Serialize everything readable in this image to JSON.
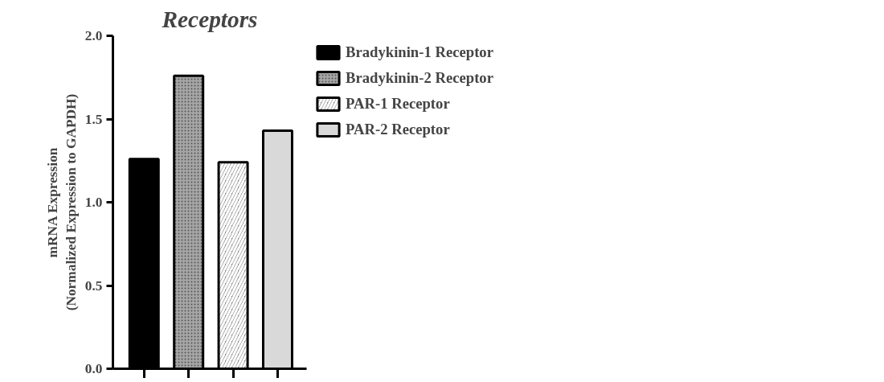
{
  "chart_data": {
    "type": "bar",
    "title": "Receptors",
    "ylabel": "mRNA Expression\n(Normalized Expression to GAPDH)",
    "categories": [
      null,
      null,
      null,
      null
    ],
    "series": [
      {
        "name": "Bradykinin-1 Receptor",
        "color": "#000000",
        "values": [
          1.26,
          null,
          null,
          null
        ]
      },
      {
        "name": "Bradykinin-2 Receptor",
        "color": "#a6a6a6",
        "values": [
          null,
          1.76,
          null,
          null
        ]
      },
      {
        "name": "PAR-1 Receptor",
        "color": "#808080",
        "values": [
          null,
          null,
          1.24,
          null
        ]
      },
      {
        "name": "PAR-2 Receptor",
        "color": "#d9d9d9",
        "values": [
          null,
          null,
          null,
          1.43
        ]
      }
    ],
    "ylim": [
      0,
      2.0
    ],
    "yticks": [
      {
        "value": 0,
        "label": "0.0"
      },
      0.5,
      {
        "value": 1,
        "label": "1.0"
      },
      1.5,
      {
        "value": 2,
        "label": "2.0"
      }
    ],
    "grid": false,
    "legend": "right"
  }
}
